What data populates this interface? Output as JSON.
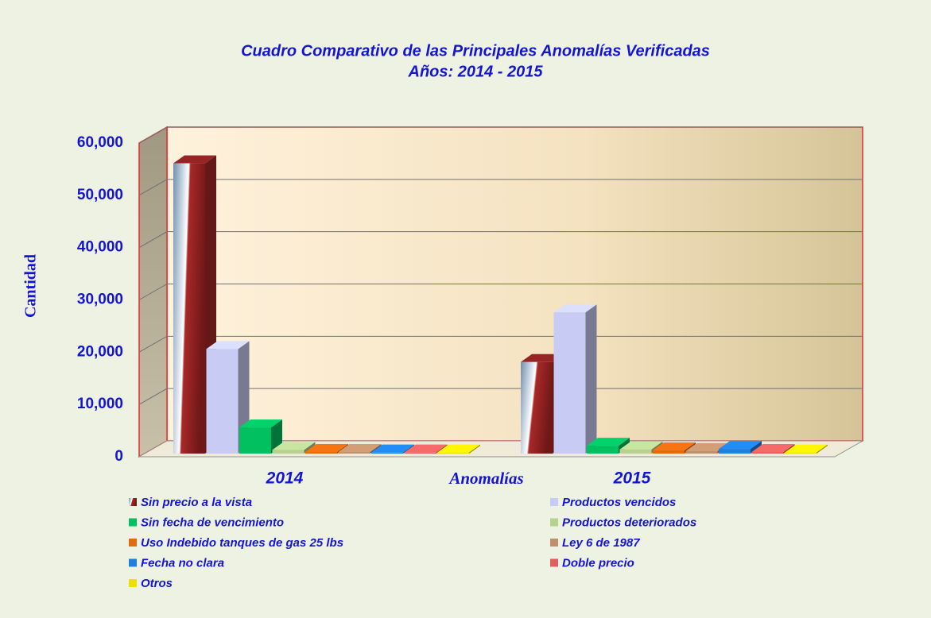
{
  "chart_data": {
    "type": "bar3d",
    "title": "Cuadro Comparativo  de las Principales Anomalías Verificadas",
    "subtitle": "Años: 2014  - 2015",
    "y_label": "Cantidad",
    "x_label": "Anomalías",
    "categories": [
      "2014",
      "2015"
    ],
    "ylim": [
      0,
      60000
    ],
    "yticks": [
      0,
      {
        "value": 10000,
        "label": "10,000"
      },
      {
        "value": 20000,
        "label": "20,000"
      },
      {
        "value": 30000,
        "label": "30,000"
      },
      {
        "value": 40000,
        "label": "40,000"
      },
      {
        "value": 50000,
        "label": "50,000"
      },
      {
        "value": 60000,
        "label": "60,000"
      }
    ],
    "grid": true,
    "series": [
      {
        "name": "Sin precio a la vista",
        "color": "#a82828",
        "values": [
          55500,
          17500
        ]
      },
      {
        "name": "Productos vencidos",
        "color": "#c8ccf4",
        "values": [
          20000,
          27000
        ]
      },
      {
        "name": "Sin fecha de vencimiento",
        "color": "#00c060",
        "values": [
          5000,
          1500
        ]
      },
      {
        "name": "Productos deteriorados",
        "color": "#b8d090",
        "values": [
          700,
          800
        ]
      },
      {
        "name": "Uso Indebido tanques de gas 25 lbs",
        "color": "#e06a10",
        "values": [
          300,
          600
        ]
      },
      {
        "name": "Ley 6 de 1987",
        "color": "#c0906a",
        "values": [
          300,
          500
        ]
      },
      {
        "name": "Fecha no clara",
        "color": "#2080e0",
        "values": [
          200,
          900
        ]
      },
      {
        "name": "Doble precio",
        "color": "#e06060",
        "values": [
          200,
          300
        ]
      },
      {
        "name": "Otros",
        "color": "#f0e000",
        "values": [
          200,
          200
        ]
      }
    ]
  }
}
